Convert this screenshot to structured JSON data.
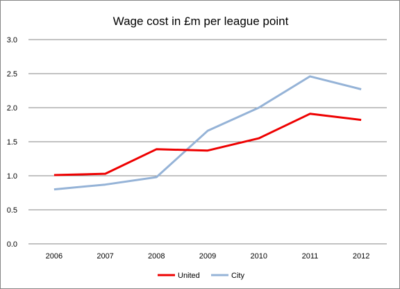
{
  "chart_data": {
    "type": "line",
    "title": "Wage cost in £m per league point",
    "xlabel": "",
    "ylabel": "",
    "categories": [
      "2006",
      "2007",
      "2008",
      "2009",
      "2010",
      "2011",
      "2012"
    ],
    "yticks": [
      "0.0",
      "0.5",
      "1.0",
      "1.5",
      "2.0",
      "2.5",
      "3.0"
    ],
    "ylim": [
      0,
      3.0
    ],
    "grid": true,
    "legend_position": "bottom",
    "series": [
      {
        "name": "United",
        "color": "#ee0000",
        "values": [
          1.01,
          1.03,
          1.39,
          1.37,
          1.55,
          1.91,
          1.82
        ]
      },
      {
        "name": "City",
        "color": "#95b3d7",
        "values": [
          0.8,
          0.87,
          0.98,
          1.66,
          2.0,
          2.46,
          2.27
        ]
      }
    ]
  }
}
